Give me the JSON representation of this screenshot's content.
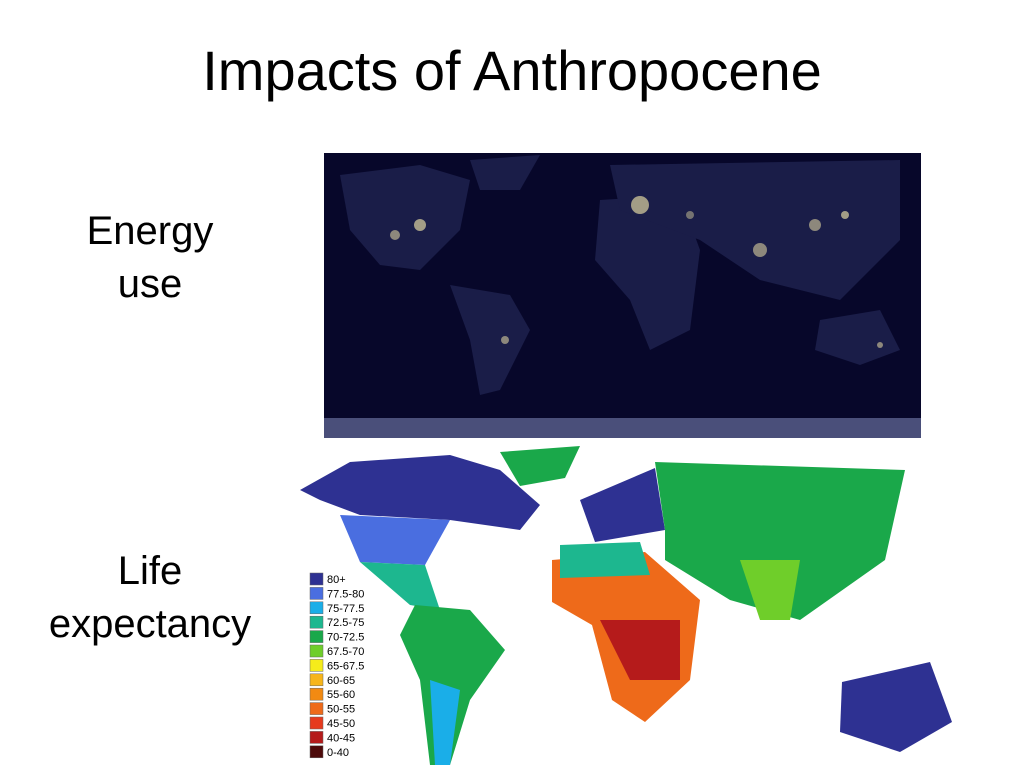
{
  "title": "Impacts of Anthropocene",
  "sections": [
    {
      "label": "Energy use"
    },
    {
      "label": "Life expectancy"
    }
  ],
  "legend": [
    {
      "label": "80+",
      "color": "#2e3192"
    },
    {
      "label": "77.5-80",
      "color": "#4a6ee0"
    },
    {
      "label": "75-77.5",
      "color": "#1aaee8"
    },
    {
      "label": "72.5-75",
      "color": "#1db78f"
    },
    {
      "label": "70-72.5",
      "color": "#1aa84a"
    },
    {
      "label": "67.5-70",
      "color": "#6fce2a"
    },
    {
      "label": "65-67.5",
      "color": "#f5ec1b"
    },
    {
      "label": "60-65",
      "color": "#f7b51a"
    },
    {
      "label": "55-60",
      "color": "#f28a12"
    },
    {
      "label": "50-55",
      "color": "#ee6a1a"
    },
    {
      "label": "45-50",
      "color": "#e63a1e"
    },
    {
      "label": "40-45",
      "color": "#b51b1b"
    },
    {
      "label": "0-40",
      "color": "#4d0a0a"
    }
  ]
}
